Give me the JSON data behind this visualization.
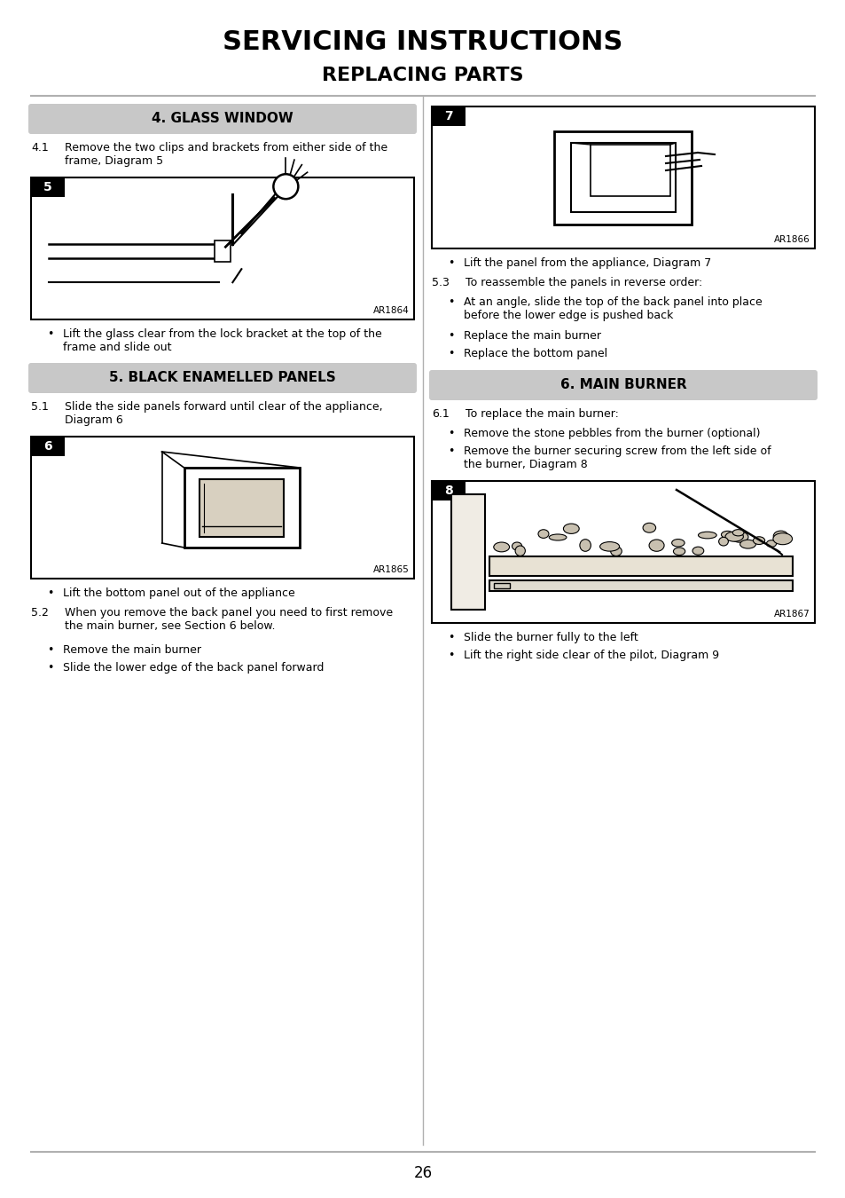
{
  "bg_color": "#ffffff",
  "title_line1": "SERVICING INSTRUCTIONS",
  "title_line2": "REPLACING PARTS",
  "section4_title": "4. GLASS WINDOW",
  "section5_title": "5. BLACK ENAMELLED PANELS",
  "section6_title": "6. MAIN BURNER",
  "header_bg": "#c8c8c8",
  "text_color": "#000000",
  "divider_color": "#b0b0b0",
  "page_number": "26",
  "diagram5_label": "5",
  "diagram5_ref": "AR1864",
  "diagram6_label": "6",
  "diagram6_ref": "AR1865",
  "diagram7_label": "7",
  "diagram7_ref": "AR1866",
  "diagram8_label": "8",
  "diagram8_ref": "AR1867"
}
